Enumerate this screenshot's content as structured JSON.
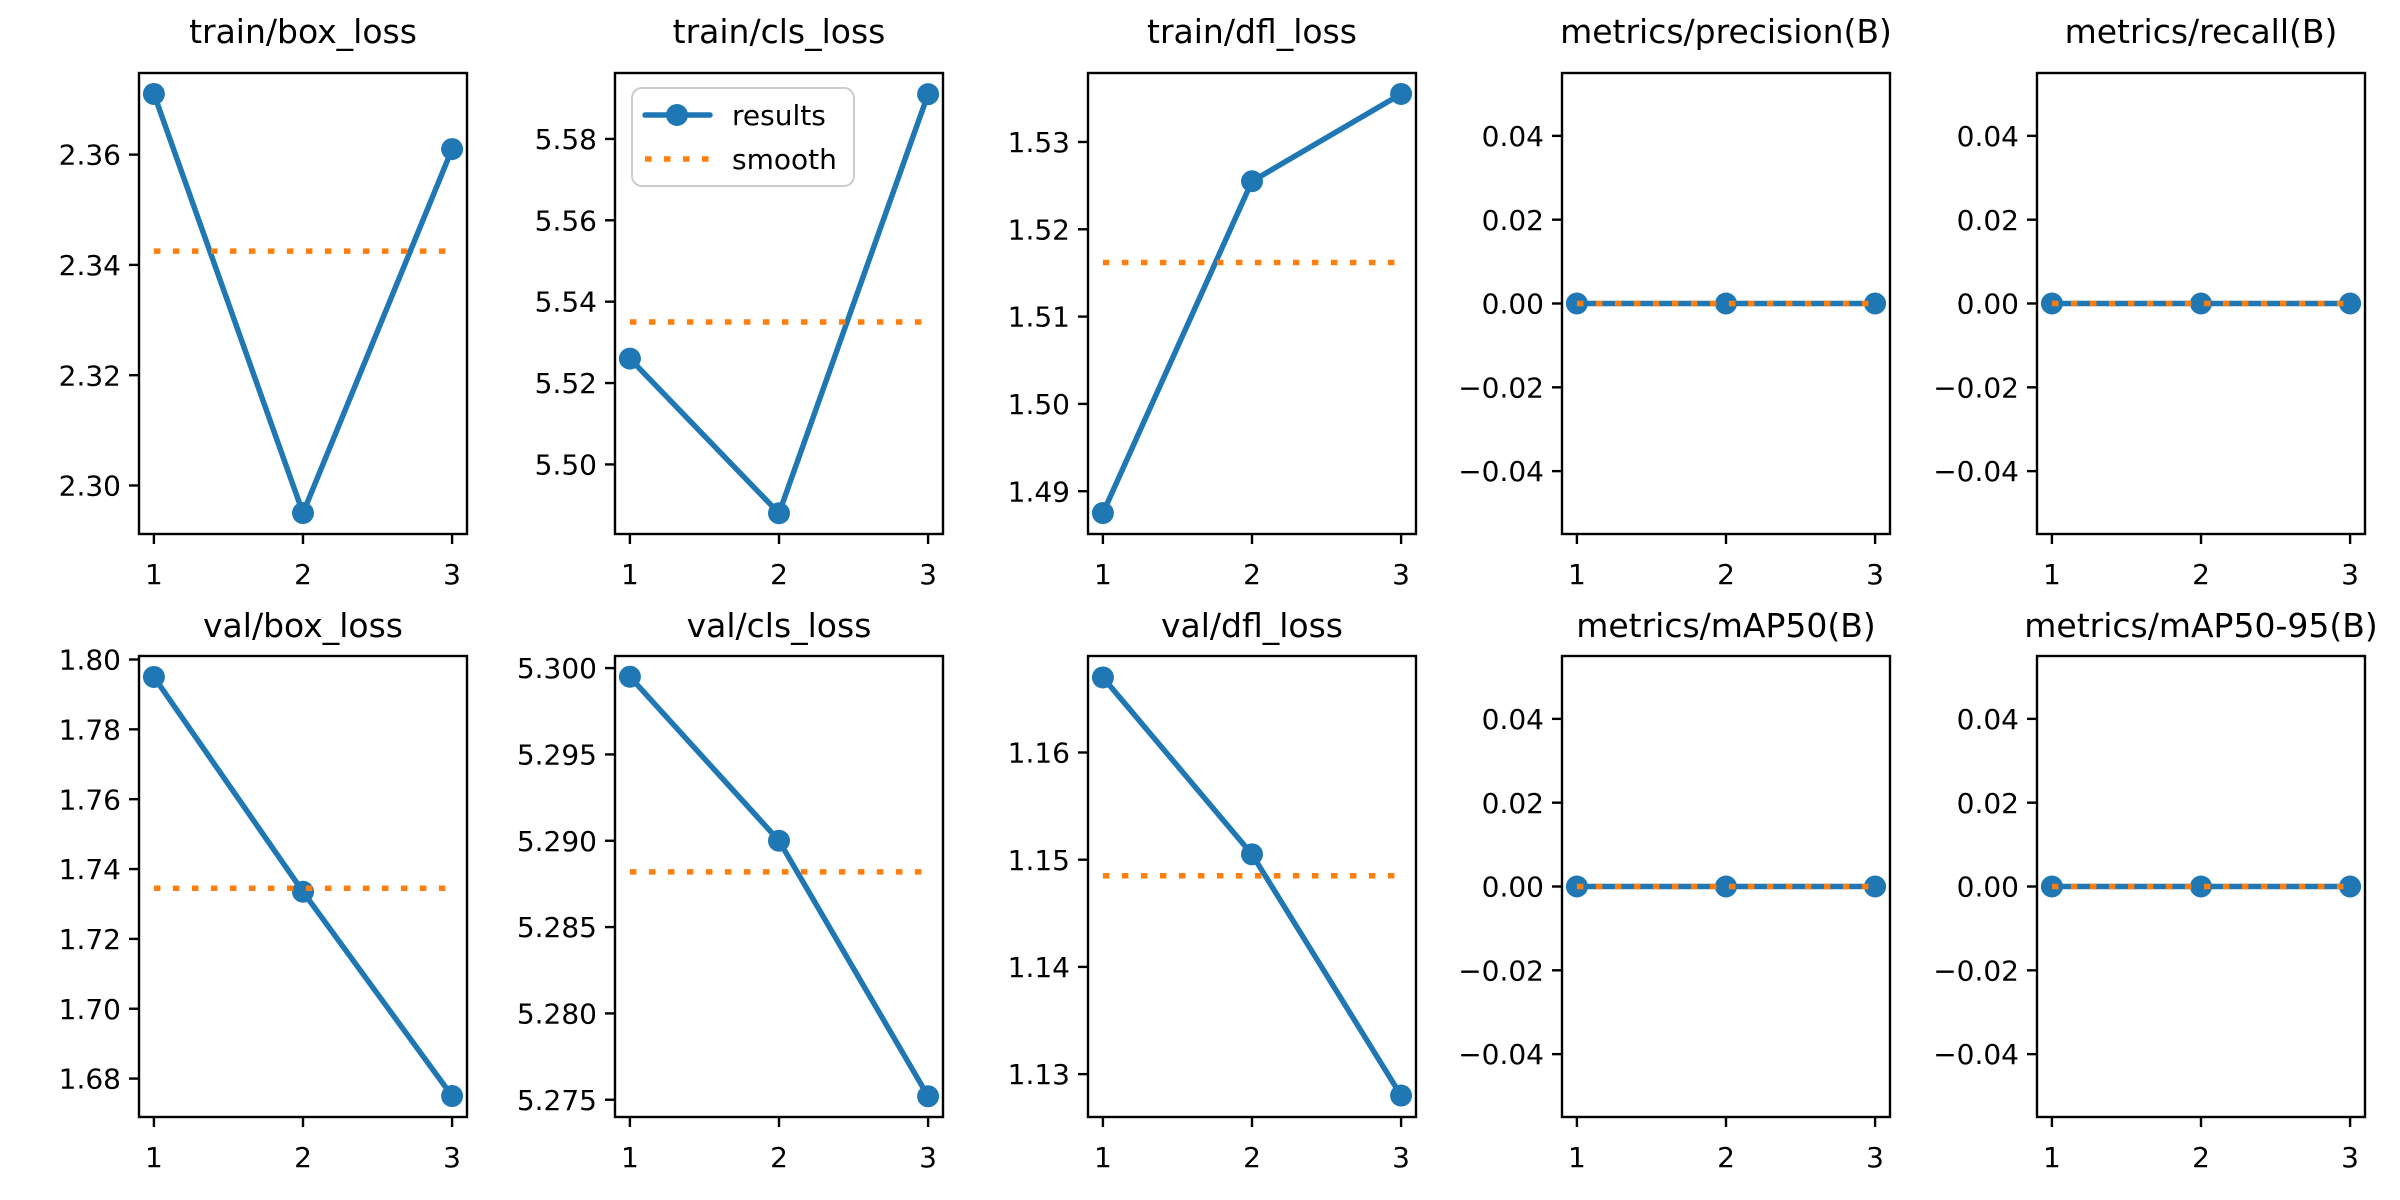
{
  "figure": {
    "kind": "training-results-grid",
    "rows": 2,
    "cols": 5
  },
  "colors": {
    "results_line": "#1f77b4",
    "smooth_line": "#ff7f0e",
    "spine": "#000000",
    "legend_border": "#cccccc",
    "background": "#ffffff"
  },
  "legend": {
    "entries": [
      "results",
      "smooth"
    ]
  },
  "chart_data": [
    {
      "type": "line",
      "title": "train/box_loss",
      "row": 0,
      "col": 0,
      "x": [
        1,
        2,
        3
      ],
      "series": [
        {
          "name": "results",
          "values": [
            2.371,
            2.295,
            2.361
          ]
        },
        {
          "name": "smooth",
          "values": [
            2.3425,
            2.3425,
            2.3425
          ]
        }
      ],
      "xlim": [
        0.9,
        3.1
      ],
      "ylim": [
        2.2912,
        2.3748
      ],
      "xticks": [
        1,
        2,
        3
      ],
      "yticks": [
        2.3,
        2.32,
        2.34,
        2.36
      ],
      "ydecimals": 2,
      "has_legend": false
    },
    {
      "type": "line",
      "title": "train/cls_loss",
      "row": 0,
      "col": 1,
      "x": [
        1,
        2,
        3
      ],
      "series": [
        {
          "name": "results",
          "values": [
            5.526,
            5.488,
            5.591
          ]
        },
        {
          "name": "smooth",
          "values": [
            5.535,
            5.535,
            5.535
          ]
        }
      ],
      "xlim": [
        0.9,
        3.1
      ],
      "ylim": [
        5.4829,
        5.5962
      ],
      "xticks": [
        1,
        2,
        3
      ],
      "yticks": [
        5.5,
        5.52,
        5.54,
        5.56,
        5.58
      ],
      "ydecimals": 2,
      "has_legend": true
    },
    {
      "type": "line",
      "title": "train/dfl_loss",
      "row": 0,
      "col": 2,
      "x": [
        1,
        2,
        3
      ],
      "series": [
        {
          "name": "results",
          "values": [
            1.4875,
            1.5255,
            1.5355
          ]
        },
        {
          "name": "smooth",
          "values": [
            1.5162,
            1.5162,
            1.5162
          ]
        }
      ],
      "xlim": [
        0.9,
        3.1
      ],
      "ylim": [
        1.4851,
        1.5379
      ],
      "xticks": [
        1,
        2,
        3
      ],
      "yticks": [
        1.49,
        1.5,
        1.51,
        1.52,
        1.53
      ],
      "ydecimals": 2,
      "has_legend": false
    },
    {
      "type": "line",
      "title": "metrics/precision(B)",
      "row": 0,
      "col": 3,
      "x": [
        1,
        2,
        3
      ],
      "series": [
        {
          "name": "results",
          "values": [
            0.0,
            0.0,
            0.0
          ]
        },
        {
          "name": "smooth",
          "values": [
            0.0,
            0.0,
            0.0
          ]
        }
      ],
      "xlim": [
        0.9,
        3.1
      ],
      "ylim": [
        -0.055,
        0.055
      ],
      "xticks": [
        1,
        2,
        3
      ],
      "yticks": [
        -0.04,
        -0.02,
        0.0,
        0.02,
        0.04
      ],
      "ydecimals": 2,
      "has_legend": false
    },
    {
      "type": "line",
      "title": "metrics/recall(B)",
      "row": 0,
      "col": 4,
      "x": [
        1,
        2,
        3
      ],
      "series": [
        {
          "name": "results",
          "values": [
            0.0,
            0.0,
            0.0
          ]
        },
        {
          "name": "smooth",
          "values": [
            0.0,
            0.0,
            0.0
          ]
        }
      ],
      "xlim": [
        0.9,
        3.1
      ],
      "ylim": [
        -0.055,
        0.055
      ],
      "xticks": [
        1,
        2,
        3
      ],
      "yticks": [
        -0.04,
        -0.02,
        0.0,
        0.02,
        0.04
      ],
      "ydecimals": 2,
      "has_legend": false
    },
    {
      "type": "line",
      "title": "val/box_loss",
      "row": 1,
      "col": 0,
      "x": [
        1,
        2,
        3
      ],
      "series": [
        {
          "name": "results",
          "values": [
            1.795,
            1.7335,
            1.675
          ]
        },
        {
          "name": "smooth",
          "values": [
            1.7345,
            1.7345,
            1.7345
          ]
        }
      ],
      "xlim": [
        0.9,
        3.1
      ],
      "ylim": [
        1.669,
        1.801
      ],
      "xticks": [
        1,
        2,
        3
      ],
      "yticks": [
        1.68,
        1.7,
        1.72,
        1.74,
        1.76,
        1.78,
        1.8
      ],
      "ydecimals": 2,
      "has_legend": false
    },
    {
      "type": "line",
      "title": "val/cls_loss",
      "row": 1,
      "col": 1,
      "x": [
        1,
        2,
        3
      ],
      "series": [
        {
          "name": "results",
          "values": [
            5.2995,
            5.29,
            5.2752
          ]
        },
        {
          "name": "smooth",
          "values": [
            5.2882,
            5.2882,
            5.2882
          ]
        }
      ],
      "xlim": [
        0.9,
        3.1
      ],
      "ylim": [
        5.274,
        5.3007
      ],
      "xticks": [
        1,
        2,
        3
      ],
      "yticks": [
        5.275,
        5.28,
        5.285,
        5.29,
        5.295,
        5.3
      ],
      "ydecimals": 3,
      "has_legend": false
    },
    {
      "type": "line",
      "title": "val/dfl_loss",
      "row": 1,
      "col": 2,
      "x": [
        1,
        2,
        3
      ],
      "series": [
        {
          "name": "results",
          "values": [
            1.167,
            1.1505,
            1.128
          ]
        },
        {
          "name": "smooth",
          "values": [
            1.1485,
            1.1485,
            1.1485
          ]
        }
      ],
      "xlim": [
        0.9,
        3.1
      ],
      "ylim": [
        1.126,
        1.169
      ],
      "xticks": [
        1,
        2,
        3
      ],
      "yticks": [
        1.13,
        1.14,
        1.15,
        1.16
      ],
      "ydecimals": 2,
      "has_legend": false
    },
    {
      "type": "line",
      "title": "metrics/mAP50(B)",
      "row": 1,
      "col": 3,
      "x": [
        1,
        2,
        3
      ],
      "series": [
        {
          "name": "results",
          "values": [
            0.0,
            0.0,
            0.0
          ]
        },
        {
          "name": "smooth",
          "values": [
            0.0,
            0.0,
            0.0
          ]
        }
      ],
      "xlim": [
        0.9,
        3.1
      ],
      "ylim": [
        -0.055,
        0.055
      ],
      "xticks": [
        1,
        2,
        3
      ],
      "yticks": [
        -0.04,
        -0.02,
        0.0,
        0.02,
        0.04
      ],
      "ydecimals": 2,
      "has_legend": false
    },
    {
      "type": "line",
      "title": "metrics/mAP50-95(B)",
      "row": 1,
      "col": 4,
      "x": [
        1,
        2,
        3
      ],
      "series": [
        {
          "name": "results",
          "values": [
            0.0,
            0.0,
            0.0
          ]
        },
        {
          "name": "smooth",
          "values": [
            0.0,
            0.0,
            0.0
          ]
        }
      ],
      "xlim": [
        0.9,
        3.1
      ],
      "ylim": [
        -0.055,
        0.055
      ],
      "xticks": [
        1,
        2,
        3
      ],
      "yticks": [
        -0.04,
        -0.02,
        0.0,
        0.02,
        0.04
      ],
      "ydecimals": 2,
      "has_legend": false
    }
  ]
}
